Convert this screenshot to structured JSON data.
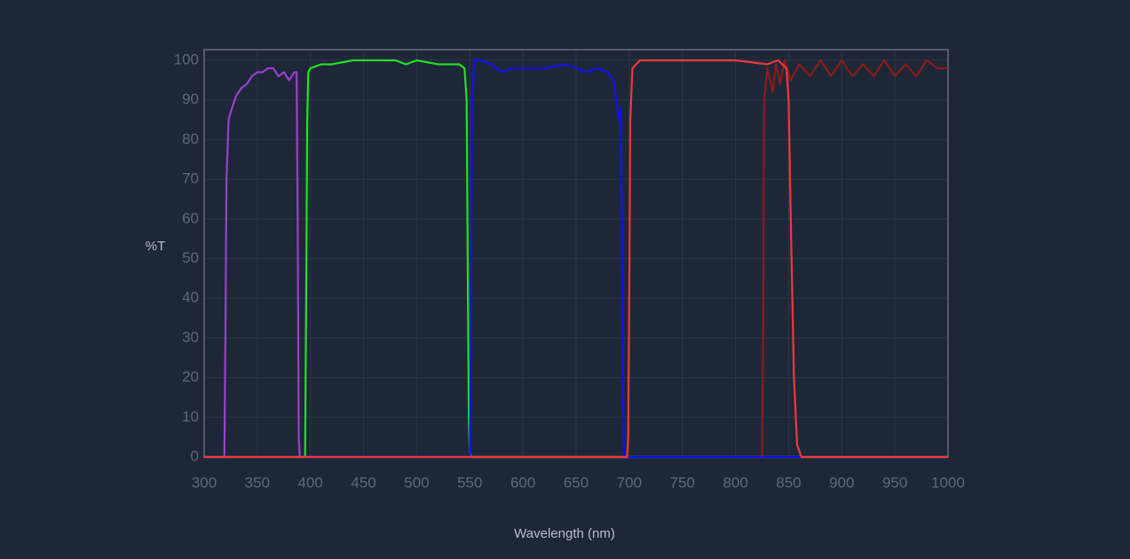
{
  "chart_data": {
    "type": "line",
    "ylabel": "%T",
    "xlabel": "Wavelength (nm)",
    "xlim": [
      300,
      1000
    ],
    "ylim": [
      0,
      100
    ],
    "xticks": [
      300,
      350,
      400,
      450,
      500,
      550,
      600,
      650,
      700,
      750,
      800,
      850,
      900,
      950,
      1000
    ],
    "yticks": [
      0,
      10,
      20,
      30,
      40,
      50,
      60,
      70,
      80,
      90,
      100
    ],
    "grid": true,
    "series": [
      {
        "color": "#9b3fd0",
        "x": [
          300,
          319,
          320,
          321,
          323,
          325,
          330,
          335,
          340,
          345,
          350,
          355,
          360,
          365,
          370,
          375,
          380,
          385,
          387,
          388,
          389,
          390,
          1000
        ],
        "values": [
          0,
          0,
          30,
          70,
          85,
          87,
          91,
          93,
          94,
          96,
          97,
          97,
          98,
          98,
          96,
          97,
          95,
          97,
          97,
          60,
          5,
          0,
          0
        ]
      },
      {
        "color": "#22e022",
        "x": [
          300,
          395,
          396,
          397,
          398,
          400,
          410,
          420,
          440,
          460,
          480,
          490,
          500,
          520,
          540,
          545,
          547,
          548,
          549,
          550,
          551,
          1000
        ],
        "values": [
          0,
          0,
          40,
          85,
          97,
          98,
          99,
          99,
          100,
          100,
          100,
          99,
          100,
          99,
          99,
          98,
          90,
          50,
          10,
          1,
          0,
          0
        ]
      },
      {
        "color": "#1010f0",
        "x": [
          300,
          550,
          551,
          552,
          554,
          560,
          570,
          580,
          590,
          600,
          620,
          640,
          660,
          670,
          680,
          685,
          688,
          690,
          692,
          693,
          694,
          695,
          1000
        ],
        "values": [
          0,
          0,
          30,
          90,
          100,
          100,
          99,
          97,
          98,
          98,
          98,
          99,
          97,
          98,
          97,
          95,
          90,
          85,
          88,
          60,
          20,
          0,
          0
        ]
      },
      {
        "color": "#8b1a1a",
        "x": [
          825,
          826,
          827,
          830,
          835,
          838,
          842,
          846,
          852,
          860,
          870,
          880,
          890,
          900,
          910,
          920,
          930,
          940,
          950,
          960,
          970,
          980,
          990,
          1000
        ],
        "values": [
          0,
          30,
          90,
          98,
          92,
          99,
          94,
          100,
          95,
          99,
          96,
          100,
          96,
          100,
          96,
          99,
          96,
          100,
          96,
          99,
          96,
          100,
          98,
          98
        ]
      },
      {
        "color": "#f03838",
        "x": [
          300,
          698,
          699,
          700,
          701,
          703,
          710,
          750,
          800,
          830,
          840,
          848,
          850,
          852,
          855,
          858,
          862,
          1000
        ],
        "values": [
          0,
          0,
          5,
          40,
          85,
          98,
          100,
          100,
          100,
          99,
          100,
          98,
          90,
          60,
          20,
          3,
          0,
          0
        ]
      }
    ]
  }
}
